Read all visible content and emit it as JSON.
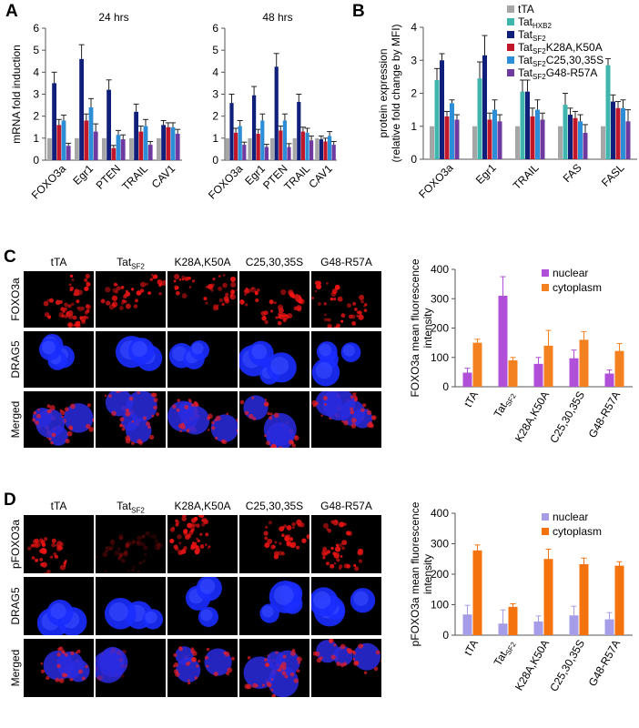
{
  "panels": {
    "A": "A",
    "B": "B",
    "C": "C",
    "D": "D"
  },
  "colors": {
    "tTA": "#a6a6a6",
    "TatHXB2": "#40b5ad",
    "TatSF2": "#0f1f7a",
    "K28A": "#c0182a",
    "C25": "#2d8ed8",
    "G48": "#6f3aa0",
    "nuclearC": "#b04fd8",
    "cytoC": "#f4811f",
    "nuclearD": "#a69de8",
    "cytoD": "#f4730f"
  },
  "chart_data": [
    {
      "id": "A24",
      "type": "bar",
      "title": "24 hrs",
      "ylabel": "mRNA fold induction",
      "ylim": [
        0,
        6
      ],
      "yticks": [
        "0",
        "1",
        "2",
        "3",
        "4",
        "5",
        "6"
      ],
      "categories": [
        "FOXO3a",
        "Egr1",
        "PTEN",
        "TRAIL",
        "CAV1"
      ],
      "series": [
        {
          "key": "tTA",
          "values": [
            1,
            1,
            1,
            1,
            1
          ],
          "err": [
            0,
            0,
            0,
            0,
            0
          ]
        },
        {
          "key": "TatSF2",
          "values": [
            3.5,
            4.6,
            3.2,
            2.2,
            1.6
          ],
          "err": [
            0.5,
            0.65,
            0.45,
            0.35,
            0.2
          ]
        },
        {
          "key": "K28A",
          "values": [
            1.6,
            1.8,
            0.55,
            1.3,
            1.5
          ],
          "err": [
            0.25,
            0.3,
            0.12,
            0.25,
            0.2
          ]
        },
        {
          "key": "C25",
          "values": [
            1.8,
            2.4,
            1.15,
            1.55,
            1.5
          ],
          "err": [
            0.25,
            0.4,
            0.2,
            0.3,
            0.2
          ]
        },
        {
          "key": "G48",
          "values": [
            0.65,
            1.3,
            0.95,
            0.7,
            1.2
          ],
          "err": [
            0.12,
            0.35,
            0.2,
            0.15,
            0.2
          ]
        }
      ]
    },
    {
      "id": "A48",
      "type": "bar",
      "title": "48 hrs",
      "ylabel": "",
      "ylim": [
        0,
        6
      ],
      "yticks": [
        "0",
        "1",
        "2",
        "3",
        "4",
        "5",
        "6"
      ],
      "categories": [
        "FOXO3a",
        "Egr1",
        "PTEN",
        "TRAIL",
        "CAV1"
      ],
      "series": [
        {
          "key": "tTA",
          "values": [
            1,
            1,
            1,
            1,
            1
          ],
          "err": [
            0,
            0,
            0,
            0,
            0
          ]
        },
        {
          "key": "TatSF2",
          "values": [
            2.6,
            2.95,
            4.25,
            2.65,
            0.95
          ],
          "err": [
            0.4,
            0.4,
            0.6,
            0.35,
            0.15
          ]
        },
        {
          "key": "K28A",
          "values": [
            1.25,
            1.2,
            1.35,
            1.3,
            0.85
          ],
          "err": [
            0.2,
            0.2,
            0.2,
            0.2,
            0.15
          ]
        },
        {
          "key": "C25",
          "values": [
            1.55,
            1.8,
            1.8,
            1.25,
            1.1
          ],
          "err": [
            0.25,
            0.3,
            0.3,
            0.2,
            0.2
          ]
        },
        {
          "key": "G48",
          "values": [
            0.7,
            0.6,
            0.6,
            0.9,
            0.7
          ],
          "err": [
            0.12,
            0.12,
            0.15,
            0.2,
            0.15
          ]
        }
      ]
    },
    {
      "id": "B",
      "type": "bar",
      "title": "",
      "ylabel": "protein expression (relative fold change by MFI)",
      "ylim": [
        0,
        4
      ],
      "yticks": [
        "0",
        "1",
        "2",
        "3",
        "4"
      ],
      "categories": [
        "FOXO3a",
        "Egr1",
        "TRAIL",
        "FAS",
        "FASL"
      ],
      "series": [
        {
          "key": "tTA",
          "name": "tTA",
          "values": [
            1,
            1,
            1,
            1,
            1
          ],
          "err": [
            0,
            0,
            0,
            0,
            0
          ]
        },
        {
          "key": "TatHXB2",
          "name": "Tat",
          "sub": "HXB2",
          "suffix": "",
          "values": [
            2.4,
            2.45,
            2.05,
            1.65,
            2.85
          ],
          "err": [
            0.35,
            0.5,
            0.35,
            0.35,
            0.2
          ]
        },
        {
          "key": "TatSF2",
          "name": "Tat",
          "sub": "SF2",
          "suffix": "",
          "values": [
            3,
            3.15,
            2.05,
            1.35,
            1.75
          ],
          "err": [
            0.2,
            0.6,
            0.35,
            0.2,
            0.2
          ]
        },
        {
          "key": "K28A",
          "name": "Tat",
          "sub": "SF2",
          "suffix": "K28A,K50A",
          "values": [
            1.3,
            1.2,
            1.3,
            1.25,
            1.55
          ],
          "err": [
            0.15,
            0.2,
            0.25,
            0.2,
            0.2
          ]
        },
        {
          "key": "C25",
          "name": "Tat",
          "sub": "SF2",
          "suffix": "C25,30,35S",
          "values": [
            1.7,
            1.5,
            1.5,
            1.15,
            1.55
          ],
          "err": [
            0.1,
            0.3,
            0.3,
            0.2,
            0.25
          ]
        },
        {
          "key": "G48",
          "name": "Tat",
          "sub": "SF2",
          "suffix": "G48-R57A",
          "values": [
            1.2,
            1.15,
            1.2,
            0.8,
            1.15
          ],
          "err": [
            0.15,
            0.2,
            0.2,
            0.25,
            0.35
          ]
        }
      ]
    },
    {
      "id": "C",
      "type": "bar",
      "title": "",
      "ylabel": "FOXO3a mean fluorescence intensity",
      "ylim": [
        0,
        400
      ],
      "yticks": [
        "0",
        "100",
        "200",
        "300",
        "400"
      ],
      "categories": [
        "tTA",
        "TatSF2",
        "K28A,K50A",
        "C25,30,35S",
        "G48-R57A"
      ],
      "series": [
        {
          "key": "nuclearC",
          "name": "nuclear",
          "values": [
            48,
            310,
            78,
            97,
            45
          ],
          "err": [
            15,
            65,
            22,
            28,
            12
          ]
        },
        {
          "key": "cytoC",
          "name": "cytoplasm",
          "values": [
            150,
            90,
            140,
            160,
            122
          ],
          "err": [
            12,
            10,
            52,
            28,
            25
          ]
        }
      ]
    },
    {
      "id": "D",
      "type": "bar",
      "title": "",
      "ylabel": "pFOXO3a mean fluorescence intensity",
      "ylim": [
        0,
        400
      ],
      "yticks": [
        "0",
        "100",
        "200",
        "300",
        "400"
      ],
      "categories": [
        "tTA",
        "TatSF2",
        "K28A,K50A",
        "C25,30,35S",
        "G48-R57A"
      ],
      "series": [
        {
          "key": "nuclearD",
          "name": "nuclear",
          "values": [
            68,
            38,
            45,
            65,
            52
          ],
          "err": [
            30,
            45,
            18,
            30,
            22
          ]
        },
        {
          "key": "cytoD",
          "name": "cytoplasm",
          "values": [
            278,
            93,
            250,
            233,
            228
          ],
          "err": [
            18,
            10,
            32,
            20,
            13
          ]
        }
      ]
    }
  ],
  "imagingC": {
    "columns": [
      {
        "main": "tTA",
        "sub": ""
      },
      {
        "main": "Tat",
        "sub": "SF2"
      },
      {
        "main": "K28A,K50A",
        "sub": ""
      },
      {
        "main": "C25,30,35S",
        "sub": ""
      },
      {
        "main": "G48-R57A",
        "sub": ""
      }
    ],
    "rows": [
      "FOXO3a",
      "DRAG5",
      "Merged"
    ]
  },
  "imagingD": {
    "columns": [
      {
        "main": "tTA",
        "sub": ""
      },
      {
        "main": "Tat",
        "sub": "SF2"
      },
      {
        "main": "K28A,K50A",
        "sub": ""
      },
      {
        "main": "C25,30,35S",
        "sub": ""
      },
      {
        "main": "G48-R57A",
        "sub": ""
      }
    ],
    "rows": [
      "pFOXO3a",
      "DRAG5",
      "Merged"
    ]
  }
}
